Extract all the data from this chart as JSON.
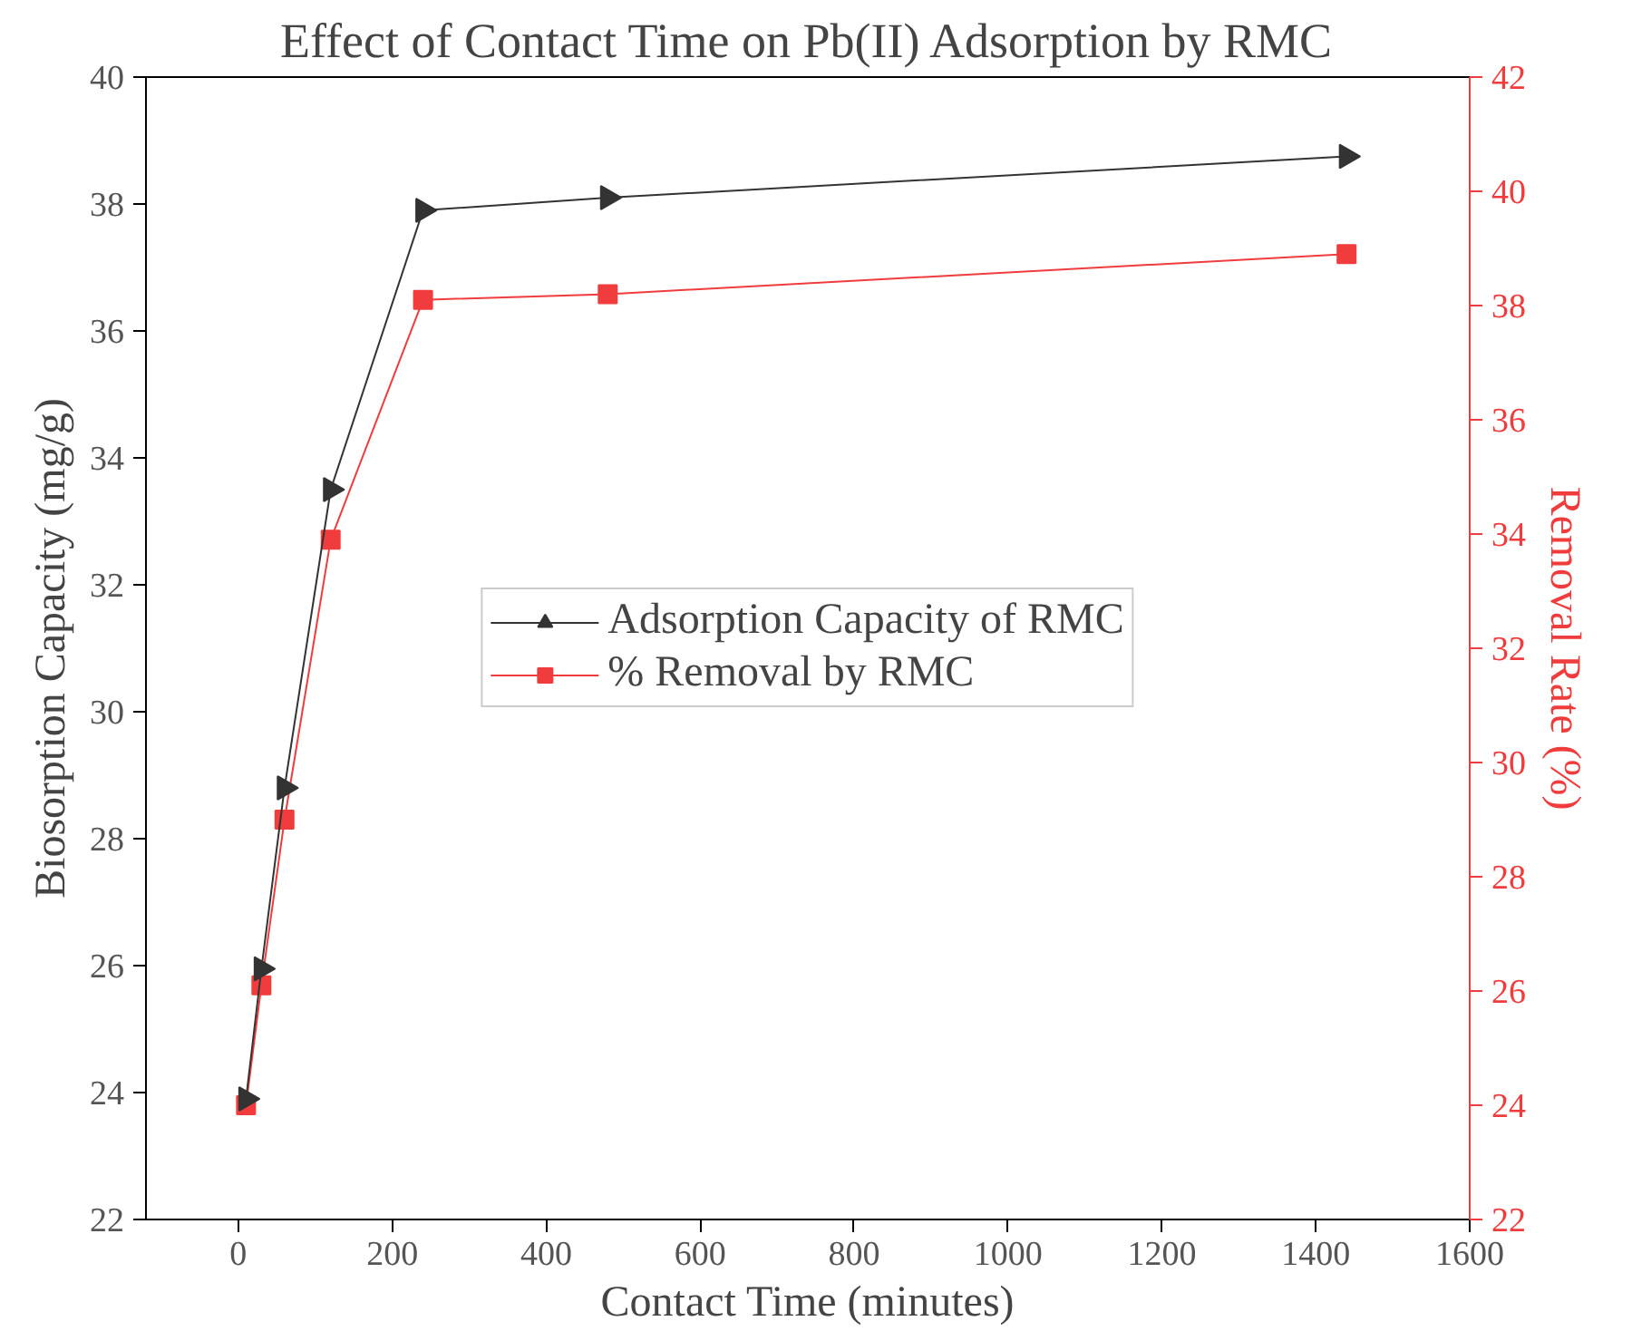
{
  "chart_data": {
    "type": "line",
    "title": "Effect of Contact Time on Pb(II) Adsorption by RMC",
    "xlabel": "Contact Time (minutes)",
    "ylabel": "Biosorption Capacity (mg/g)",
    "y2label": "Removal Rate (%)",
    "x": [
      10,
      30,
      60,
      120,
      240,
      480,
      1440
    ],
    "series": [
      {
        "name": "Adsorption Capacity of RMC",
        "color": "#333333",
        "marker": "triangle",
        "values": [
          23.9,
          25.95,
          28.8,
          33.5,
          37.9,
          38.1,
          38.75
        ]
      },
      {
        "name": "% Removal by RMC",
        "color": "#f03c3c",
        "marker": "square",
        "axis": "y2",
        "values": [
          24.0,
          26.1,
          29.0,
          33.9,
          38.1,
          38.2,
          38.9
        ]
      }
    ],
    "xlim": [
      -120,
      1600
    ],
    "xticks": [
      0,
      200,
      400,
      600,
      800,
      1000,
      1200,
      1400,
      1600
    ],
    "ylim": [
      22,
      40
    ],
    "yticks": [
      22,
      24,
      26,
      28,
      30,
      32,
      34,
      36,
      38,
      40
    ],
    "y2lim": [
      22,
      42
    ],
    "y2ticks": [
      22,
      24,
      26,
      28,
      30,
      32,
      34,
      36,
      38,
      40,
      42
    ],
    "grid": false,
    "legend": "center",
    "line_style": "solid"
  }
}
